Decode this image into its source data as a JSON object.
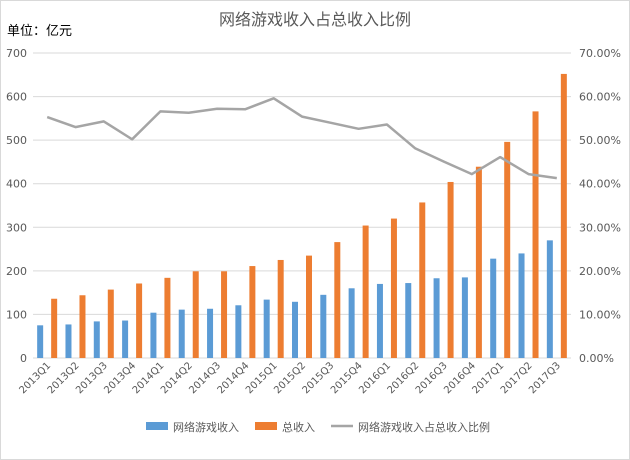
{
  "chart_data": {
    "type": "bar",
    "title": "网络游戏收入占总收入比例",
    "unit_label": "单位：亿元",
    "categories": [
      "2013Q1",
      "2013Q2",
      "2013Q3",
      "2013Q4",
      "2014Q1",
      "2014Q2",
      "2014Q3",
      "2014Q4",
      "2015Q1",
      "2015Q2",
      "2015Q3",
      "2015Q4",
      "2016Q1",
      "2016Q2",
      "2016Q3",
      "2016Q4",
      "2017Q1",
      "2017Q2",
      "2017Q3"
    ],
    "series": [
      {
        "name": "网络游戏收入",
        "type": "bar",
        "axis": "left",
        "color": "#5b9bd5",
        "values": [
          75,
          77,
          84,
          86,
          104,
          111,
          113,
          121,
          134,
          129,
          145,
          160,
          170,
          172,
          183,
          185,
          228,
          240,
          270
        ]
      },
      {
        "name": "总收入",
        "type": "bar",
        "axis": "left",
        "color": "#ed7d31",
        "values": [
          136,
          144,
          157,
          171,
          184,
          199,
          199,
          211,
          225,
          235,
          266,
          304,
          320,
          357,
          404,
          439,
          496,
          566,
          652
        ]
      },
      {
        "name": "网络游戏收入占总收入比例",
        "type": "line",
        "axis": "right",
        "color": "#a5a5a5",
        "values": [
          55.3,
          53.0,
          54.3,
          50.2,
          56.6,
          56.3,
          57.2,
          57.1,
          59.6,
          55.4,
          54.0,
          52.6,
          53.6,
          48.1,
          45.1,
          42.2,
          46.1,
          42.2,
          41.3
        ]
      }
    ],
    "y_left": {
      "min": 0,
      "max": 700,
      "step": 100,
      "ticks": [
        "0",
        "100",
        "200",
        "300",
        "400",
        "500",
        "600",
        "700"
      ]
    },
    "y_right": {
      "min": 0,
      "max": 70,
      "step": 10,
      "ticks": [
        "0.00%",
        "10.00%",
        "20.00%",
        "30.00%",
        "40.00%",
        "50.00%",
        "60.00%",
        "70.00%"
      ]
    },
    "grid": true,
    "legend_position": "bottom"
  }
}
